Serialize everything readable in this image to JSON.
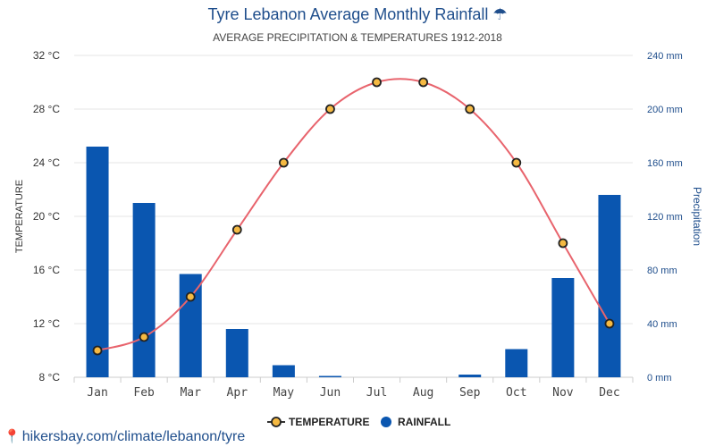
{
  "chart_data": {
    "type": "bar+line",
    "title": "Tyre Lebanon Average Monthly Rainfall",
    "title_icon": "umbrella-icon",
    "subtitle": "AVERAGE PRECIPITATION & TEMPERATURES 1912-2018",
    "categories": [
      "Jan",
      "Feb",
      "Mar",
      "Apr",
      "May",
      "Jun",
      "Jul",
      "Aug",
      "Sep",
      "Oct",
      "Nov",
      "Dec"
    ],
    "y_left": {
      "label": "TEMPERATURE",
      "ticks": [
        "8 °C",
        "12 °C",
        "16 °C",
        "20 °C",
        "24 °C",
        "28 °C",
        "32 °C"
      ],
      "range": [
        8,
        32
      ]
    },
    "y_right": {
      "label": "Precipitation",
      "ticks": [
        "0 mm",
        "40 mm",
        "80 mm",
        "120 mm",
        "160 mm",
        "200 mm",
        "240 mm"
      ],
      "range": [
        0,
        240
      ]
    },
    "series": [
      {
        "name": "TEMPERATURE",
        "kind": "line",
        "axis": "left",
        "unit": "°C",
        "color": "#e8646d",
        "marker_fill": "#f5b942",
        "values": [
          10,
          11,
          14,
          19,
          24,
          28,
          30,
          30,
          28,
          24,
          18,
          12
        ]
      },
      {
        "name": "RAINFALL",
        "kind": "bar",
        "axis": "right",
        "unit": "mm",
        "color": "#0a56b0",
        "values": [
          172,
          130,
          77,
          36,
          9,
          1,
          0,
          0,
          2,
          21,
          74,
          136
        ]
      }
    ],
    "grid": true,
    "legend_position": "bottom-center"
  },
  "source": {
    "text": "hikersbay.com/climate/lebanon/tyre",
    "icon": "location-pin-icon"
  }
}
